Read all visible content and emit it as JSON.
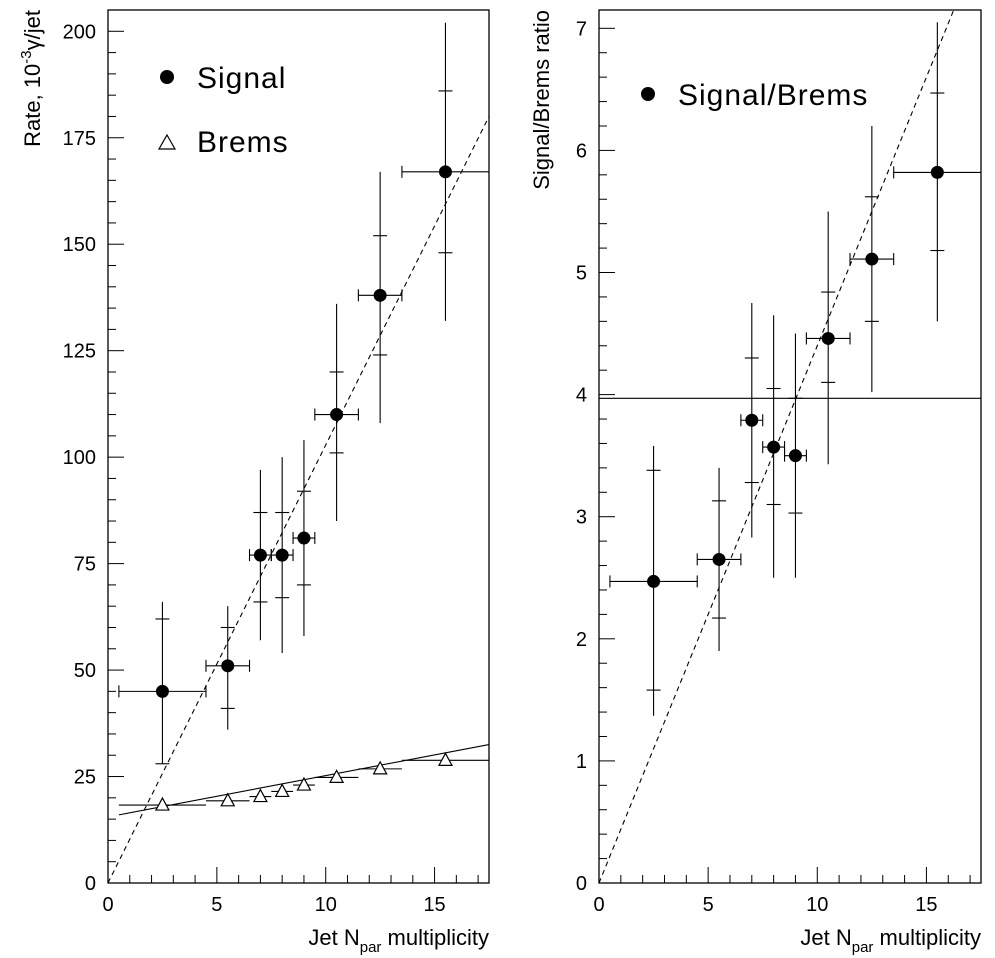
{
  "chart_data": [
    {
      "type": "scatter",
      "xlabel_prefix": "Jet N",
      "xlabel_sub": "par",
      "xlabel_suffix": " multiplicity",
      "ylabel_prefix": "Rate, 10",
      "ylabel_sup": "-3",
      "ylabel_suffix": "γ/jet",
      "xlim": [
        0,
        17.5
      ],
      "ylim": [
        0,
        205
      ],
      "xticks": [
        0,
        5,
        10,
        15
      ],
      "yticks": [
        0,
        25,
        50,
        75,
        100,
        125,
        150,
        175,
        200
      ],
      "legend_position": "top-left",
      "series": [
        {
          "name": "Signal",
          "marker": "filled-circle",
          "points": [
            {
              "x": 2.5,
              "y": 45,
              "xlo": 0.5,
              "xhi": 4.5,
              "ystat": [
                28,
                62
              ],
              "ytot": [
                28,
                66
              ]
            },
            {
              "x": 5.5,
              "y": 51,
              "xlo": 4.5,
              "xhi": 6.5,
              "ystat": [
                41,
                60
              ],
              "ytot": [
                36,
                65
              ]
            },
            {
              "x": 7.0,
              "y": 77,
              "xlo": 6.5,
              "xhi": 7.5,
              "ystat": [
                66,
                87
              ],
              "ytot": [
                57,
                97
              ]
            },
            {
              "x": 8.0,
              "y": 77,
              "xlo": 7.5,
              "xhi": 8.5,
              "ystat": [
                67,
                87
              ],
              "ytot": [
                54,
                100
              ]
            },
            {
              "x": 9.0,
              "y": 81,
              "xlo": 8.5,
              "xhi": 9.5,
              "ystat": [
                70,
                92
              ],
              "ytot": [
                58,
                104
              ]
            },
            {
              "x": 10.5,
              "y": 110,
              "xlo": 9.5,
              "xhi": 11.5,
              "ystat": [
                101,
                120
              ],
              "ytot": [
                85,
                136
              ]
            },
            {
              "x": 12.5,
              "y": 138,
              "xlo": 11.5,
              "xhi": 13.5,
              "ystat": [
                124,
                152
              ],
              "ytot": [
                108,
                167
              ]
            },
            {
              "x": 15.5,
              "y": 167,
              "xlo": 13.5,
              "xhi": 17.5,
              "ystat": [
                148,
                186
              ],
              "ytot": [
                132,
                202
              ]
            }
          ],
          "fit": {
            "style": "dashed",
            "x": [
              0,
              17.5
            ],
            "y": [
              0,
              180
            ]
          }
        },
        {
          "name": "Brems",
          "marker": "open-triangle",
          "points": [
            {
              "x": 2.5,
              "y": 18.3,
              "xlo": 0.5,
              "xhi": 4.5
            },
            {
              "x": 5.5,
              "y": 19.3,
              "xlo": 4.5,
              "xhi": 6.5
            },
            {
              "x": 7.0,
              "y": 20.3,
              "xlo": 6.5,
              "xhi": 7.5
            },
            {
              "x": 8.0,
              "y": 21.5,
              "xlo": 7.5,
              "xhi": 8.5
            },
            {
              "x": 9.0,
              "y": 23.0,
              "xlo": 8.5,
              "xhi": 9.5
            },
            {
              "x": 10.5,
              "y": 24.8,
              "xlo": 9.5,
              "xhi": 11.5
            },
            {
              "x": 12.5,
              "y": 26.8,
              "xlo": 11.5,
              "xhi": 13.5
            },
            {
              "x": 15.5,
              "y": 28.8,
              "xlo": 13.5,
              "xhi": 17.5
            }
          ],
          "fit": {
            "style": "solid",
            "x": [
              0.5,
              17.5
            ],
            "y": [
              16,
              32.5
            ]
          }
        }
      ]
    },
    {
      "type": "scatter",
      "xlabel_prefix": "Jet N",
      "xlabel_sub": "par",
      "xlabel_suffix": " multiplicity",
      "ylabel": "Signal/Brems ratio",
      "xlim": [
        0,
        17.5
      ],
      "ylim": [
        0,
        7.15
      ],
      "xticks": [
        0,
        5,
        10,
        15
      ],
      "yticks": [
        0,
        1,
        2,
        3,
        4,
        5,
        6,
        7
      ],
      "legend_position": "top-left",
      "series": [
        {
          "name": "Signal/Brems",
          "marker": "filled-circle",
          "points": [
            {
              "x": 2.5,
              "y": 2.47,
              "xlo": 0.5,
              "xhi": 4.5,
              "ystat": [
                1.58,
                3.38
              ],
              "ytot": [
                1.37,
                3.58
              ]
            },
            {
              "x": 5.5,
              "y": 2.65,
              "xlo": 4.5,
              "xhi": 6.5,
              "ystat": [
                2.17,
                3.13
              ],
              "ytot": [
                1.9,
                3.4
              ]
            },
            {
              "x": 7.0,
              "y": 3.79,
              "xlo": 6.5,
              "xhi": 7.5,
              "ystat": [
                3.28,
                4.3
              ],
              "ytot": [
                2.83,
                4.75
              ]
            },
            {
              "x": 8.0,
              "y": 3.57,
              "xlo": 7.5,
              "xhi": 8.5,
              "ystat": [
                3.1,
                4.05
              ],
              "ytot": [
                2.5,
                4.65
              ]
            },
            {
              "x": 9.0,
              "y": 3.5,
              "xlo": 8.5,
              "xhi": 9.5,
              "ystat": [
                3.03,
                3.97
              ],
              "ytot": [
                2.5,
                4.5
              ]
            },
            {
              "x": 10.5,
              "y": 4.46,
              "xlo": 9.5,
              "xhi": 11.5,
              "ystat": [
                4.1,
                4.84
              ],
              "ytot": [
                3.43,
                5.5
              ]
            },
            {
              "x": 12.5,
              "y": 5.11,
              "xlo": 11.5,
              "xhi": 13.5,
              "ystat": [
                4.6,
                5.62
              ],
              "ytot": [
                4.02,
                6.2
              ]
            },
            {
              "x": 15.5,
              "y": 5.82,
              "xlo": 13.5,
              "xhi": 17.5,
              "ystat": [
                5.18,
                6.47
              ],
              "ytot": [
                4.6,
                7.05
              ]
            }
          ],
          "fit": {
            "style": "dashed",
            "x": [
              0,
              17.5
            ],
            "y": [
              0,
              7.7
            ]
          }
        }
      ],
      "reference_line": {
        "y": 3.97
      }
    }
  ]
}
